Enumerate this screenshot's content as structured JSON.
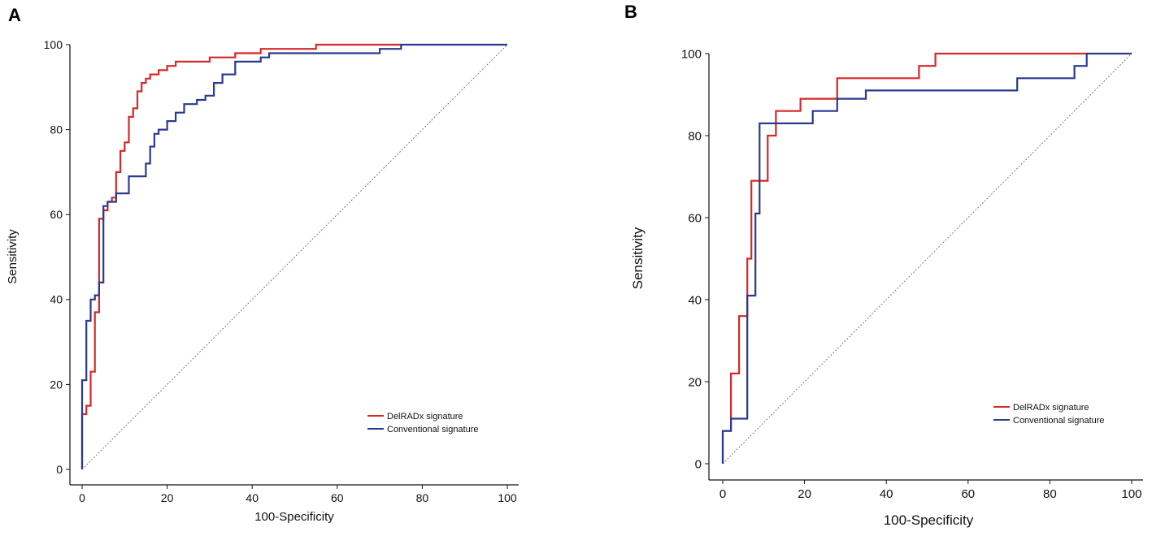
{
  "chart_data": [
    {
      "type": "line",
      "panel": "A",
      "xlabel": "100-Specificity",
      "ylabel": "Sensitivity",
      "xlim": [
        0,
        100
      ],
      "ylim": [
        0,
        100
      ],
      "xticks": [
        0,
        20,
        40,
        60,
        80,
        100
      ],
      "yticks": [
        0,
        20,
        40,
        60,
        80,
        100
      ],
      "reference_line": true,
      "legend_position": "bottom-right",
      "series": [
        {
          "name": "DelRADx signature",
          "color": "#d62828",
          "x": [
            0,
            0,
            1,
            1,
            2,
            2,
            3,
            3,
            4,
            4,
            5,
            5,
            6,
            6,
            7,
            7,
            8,
            8,
            9,
            9,
            10,
            10,
            11,
            11,
            12,
            12,
            13,
            13,
            14,
            14,
            15,
            15,
            16,
            16,
            18,
            18,
            20,
            20,
            22,
            22,
            30,
            30,
            36,
            36,
            42,
            42,
            48,
            48,
            55,
            55,
            75
          ],
          "y": [
            0,
            13,
            13,
            15,
            15,
            23,
            23,
            37,
            37,
            59,
            59,
            61,
            61,
            63,
            63,
            64,
            64,
            70,
            70,
            75,
            75,
            77,
            77,
            83,
            83,
            85,
            85,
            89,
            89,
            91,
            91,
            92,
            92,
            93,
            93,
            94,
            94,
            95,
            95,
            96,
            96,
            97,
            97,
            98,
            98,
            99,
            99,
            99,
            99,
            100,
            100
          ]
        },
        {
          "name": "Conventional signature",
          "color": "#2b3a8f",
          "x": [
            0,
            0,
            1,
            1,
            2,
            2,
            3,
            3,
            4,
            4,
            5,
            5,
            6,
            6,
            8,
            8,
            11,
            11,
            15,
            15,
            16,
            16,
            17,
            17,
            18,
            18,
            20,
            20,
            22,
            22,
            24,
            24,
            27,
            27,
            29,
            29,
            31,
            31,
            33,
            33,
            36,
            36,
            42,
            42,
            44,
            44,
            70,
            70,
            75,
            75,
            100
          ],
          "y": [
            0,
            21,
            21,
            35,
            35,
            40,
            40,
            41,
            41,
            44,
            44,
            62,
            62,
            63,
            63,
            65,
            65,
            69,
            69,
            72,
            72,
            76,
            76,
            79,
            79,
            80,
            80,
            82,
            82,
            84,
            84,
            86,
            86,
            87,
            87,
            88,
            88,
            91,
            91,
            93,
            93,
            96,
            96,
            97,
            97,
            98,
            98,
            99,
            99,
            100,
            100
          ]
        }
      ]
    },
    {
      "type": "line",
      "panel": "B",
      "xlabel": "100-Specificity",
      "ylabel": "Sensitivity",
      "xlim": [
        0,
        100
      ],
      "ylim": [
        0,
        100
      ],
      "xticks": [
        0,
        20,
        40,
        60,
        80,
        100
      ],
      "yticks": [
        0,
        20,
        40,
        60,
        80,
        100
      ],
      "reference_line": true,
      "legend_position": "bottom-right",
      "series": [
        {
          "name": "DelRADx signature",
          "color": "#d62828",
          "x": [
            0,
            0,
            2,
            2,
            4,
            4,
            6,
            6,
            7,
            7,
            9,
            9,
            11,
            11,
            13,
            13,
            19,
            19,
            28,
            28,
            48,
            48,
            52,
            52,
            89,
            89
          ],
          "y": [
            0,
            8,
            8,
            22,
            22,
            36,
            36,
            50,
            50,
            69,
            69,
            69,
            69,
            80,
            80,
            86,
            86,
            89,
            89,
            94,
            94,
            97,
            97,
            100,
            100,
            100
          ]
        },
        {
          "name": "Conventional signature",
          "color": "#2b3a8f",
          "x": [
            0,
            0,
            2,
            2,
            6,
            6,
            8,
            8,
            9,
            9,
            22,
            22,
            28,
            28,
            35,
            35,
            72,
            72,
            83,
            83,
            86,
            86,
            89,
            89,
            100
          ],
          "y": [
            0,
            8,
            8,
            11,
            11,
            41,
            41,
            61,
            61,
            83,
            83,
            86,
            86,
            89,
            89,
            91,
            91,
            94,
            94,
            94,
            94,
            97,
            97,
            100,
            100
          ]
        }
      ]
    }
  ]
}
